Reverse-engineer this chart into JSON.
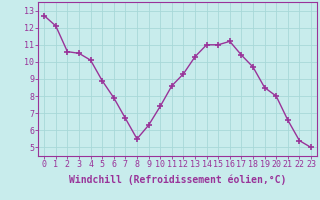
{
  "x": [
    0,
    1,
    2,
    3,
    4,
    5,
    6,
    7,
    8,
    9,
    10,
    11,
    12,
    13,
    14,
    15,
    16,
    17,
    18,
    19,
    20,
    21,
    22,
    23
  ],
  "y": [
    12.7,
    12.1,
    10.6,
    10.5,
    10.1,
    8.9,
    7.9,
    6.7,
    5.5,
    6.3,
    7.4,
    8.6,
    9.3,
    10.3,
    11.0,
    11.0,
    11.2,
    10.4,
    9.7,
    8.5,
    8.0,
    6.6,
    5.4,
    5.0
  ],
  "line_color": "#993399",
  "marker": "+",
  "markersize": 4,
  "markeredgewidth": 1.2,
  "linewidth": 1.0,
  "xlim": [
    -0.5,
    23.5
  ],
  "ylim": [
    4.5,
    13.5
  ],
  "yticks": [
    5,
    6,
    7,
    8,
    9,
    10,
    11,
    12,
    13
  ],
  "xticks": [
    0,
    1,
    2,
    3,
    4,
    5,
    6,
    7,
    8,
    9,
    10,
    11,
    12,
    13,
    14,
    15,
    16,
    17,
    18,
    19,
    20,
    21,
    22,
    23
  ],
  "xlabel": "Windchill (Refroidissement éolien,°C)",
  "grid_color": "#a8d8d8",
  "bg_color": "#c8ecec",
  "spine_color": "#993399",
  "tick_color": "#993399",
  "label_color": "#993399",
  "xlabel_fontsize": 7,
  "tick_fontsize": 6
}
